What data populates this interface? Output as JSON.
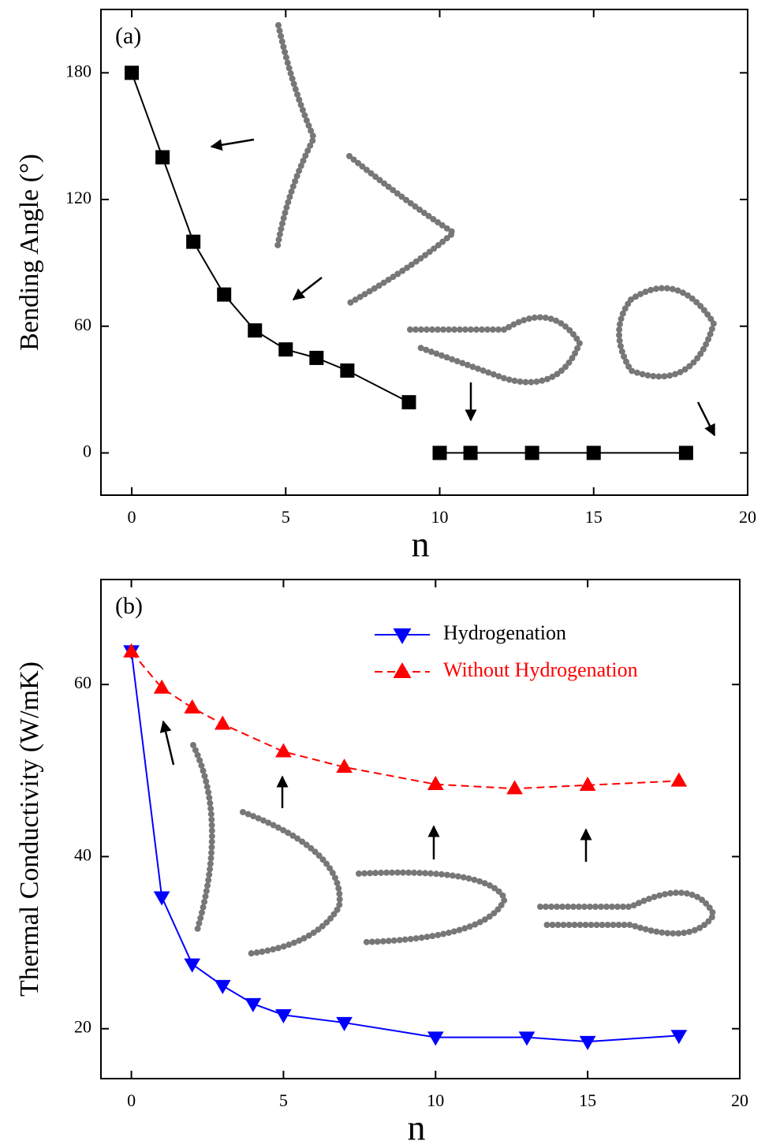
{
  "chart_data": [
    {
      "type": "scatter-line",
      "panel_label": "(a)",
      "xlabel": "n",
      "ylabel": "Bending Angle (°)",
      "xlim": [
        -1,
        20
      ],
      "ylim": [
        -20,
        210
      ],
      "xticks": [
        0,
        5,
        10,
        15,
        20
      ],
      "yticks": [
        0,
        60,
        120,
        180
      ],
      "series": [
        {
          "color": "#000000",
          "marker": "square",
          "line_style": "solid",
          "x": [
            0,
            1,
            2,
            3,
            4,
            5,
            6,
            7,
            9
          ],
          "values": [
            180,
            140,
            100,
            75,
            58,
            49,
            45,
            39,
            24
          ]
        },
        {
          "color": "#000000",
          "marker": "square",
          "line_style": "solid",
          "x": [
            10,
            11,
            13,
            15,
            18
          ],
          "values": [
            0,
            0,
            0,
            0,
            0
          ]
        }
      ]
    },
    {
      "type": "scatter-line",
      "panel_label": "(b)",
      "xlabel": "n",
      "ylabel": "Thermal Conductivity (W/mK)",
      "xlim": [
        -1,
        20
      ],
      "ylim": [
        14.2,
        72.2
      ],
      "xticks": [
        0,
        5,
        10,
        15,
        20
      ],
      "yticks": [
        20,
        40,
        60
      ],
      "legend": "upper right",
      "series": [
        {
          "name": "Hydrogenation",
          "color": "#0000ff",
          "legend_text_color": "#000000",
          "marker": "triangle-down",
          "line_style": "solid",
          "x": [
            0,
            1,
            2,
            3,
            4,
            5,
            7,
            10,
            13,
            15,
            18
          ],
          "values": [
            63.9,
            35.3,
            27.5,
            25.0,
            22.9,
            21.6,
            20.7,
            19.0,
            19.0,
            18.5,
            19.2
          ]
        },
        {
          "name": "Without Hydrogenation",
          "color": "#ff0000",
          "legend_text_color": "#ff0000",
          "marker": "triangle-up",
          "line_style": "dashed",
          "x": [
            0,
            1,
            2,
            3,
            5,
            7,
            10,
            12.6,
            15,
            18
          ],
          "values": [
            63.8,
            59.6,
            57.3,
            55.4,
            52.2,
            50.4,
            48.4,
            47.9,
            48.3,
            48.8
          ]
        }
      ]
    }
  ]
}
